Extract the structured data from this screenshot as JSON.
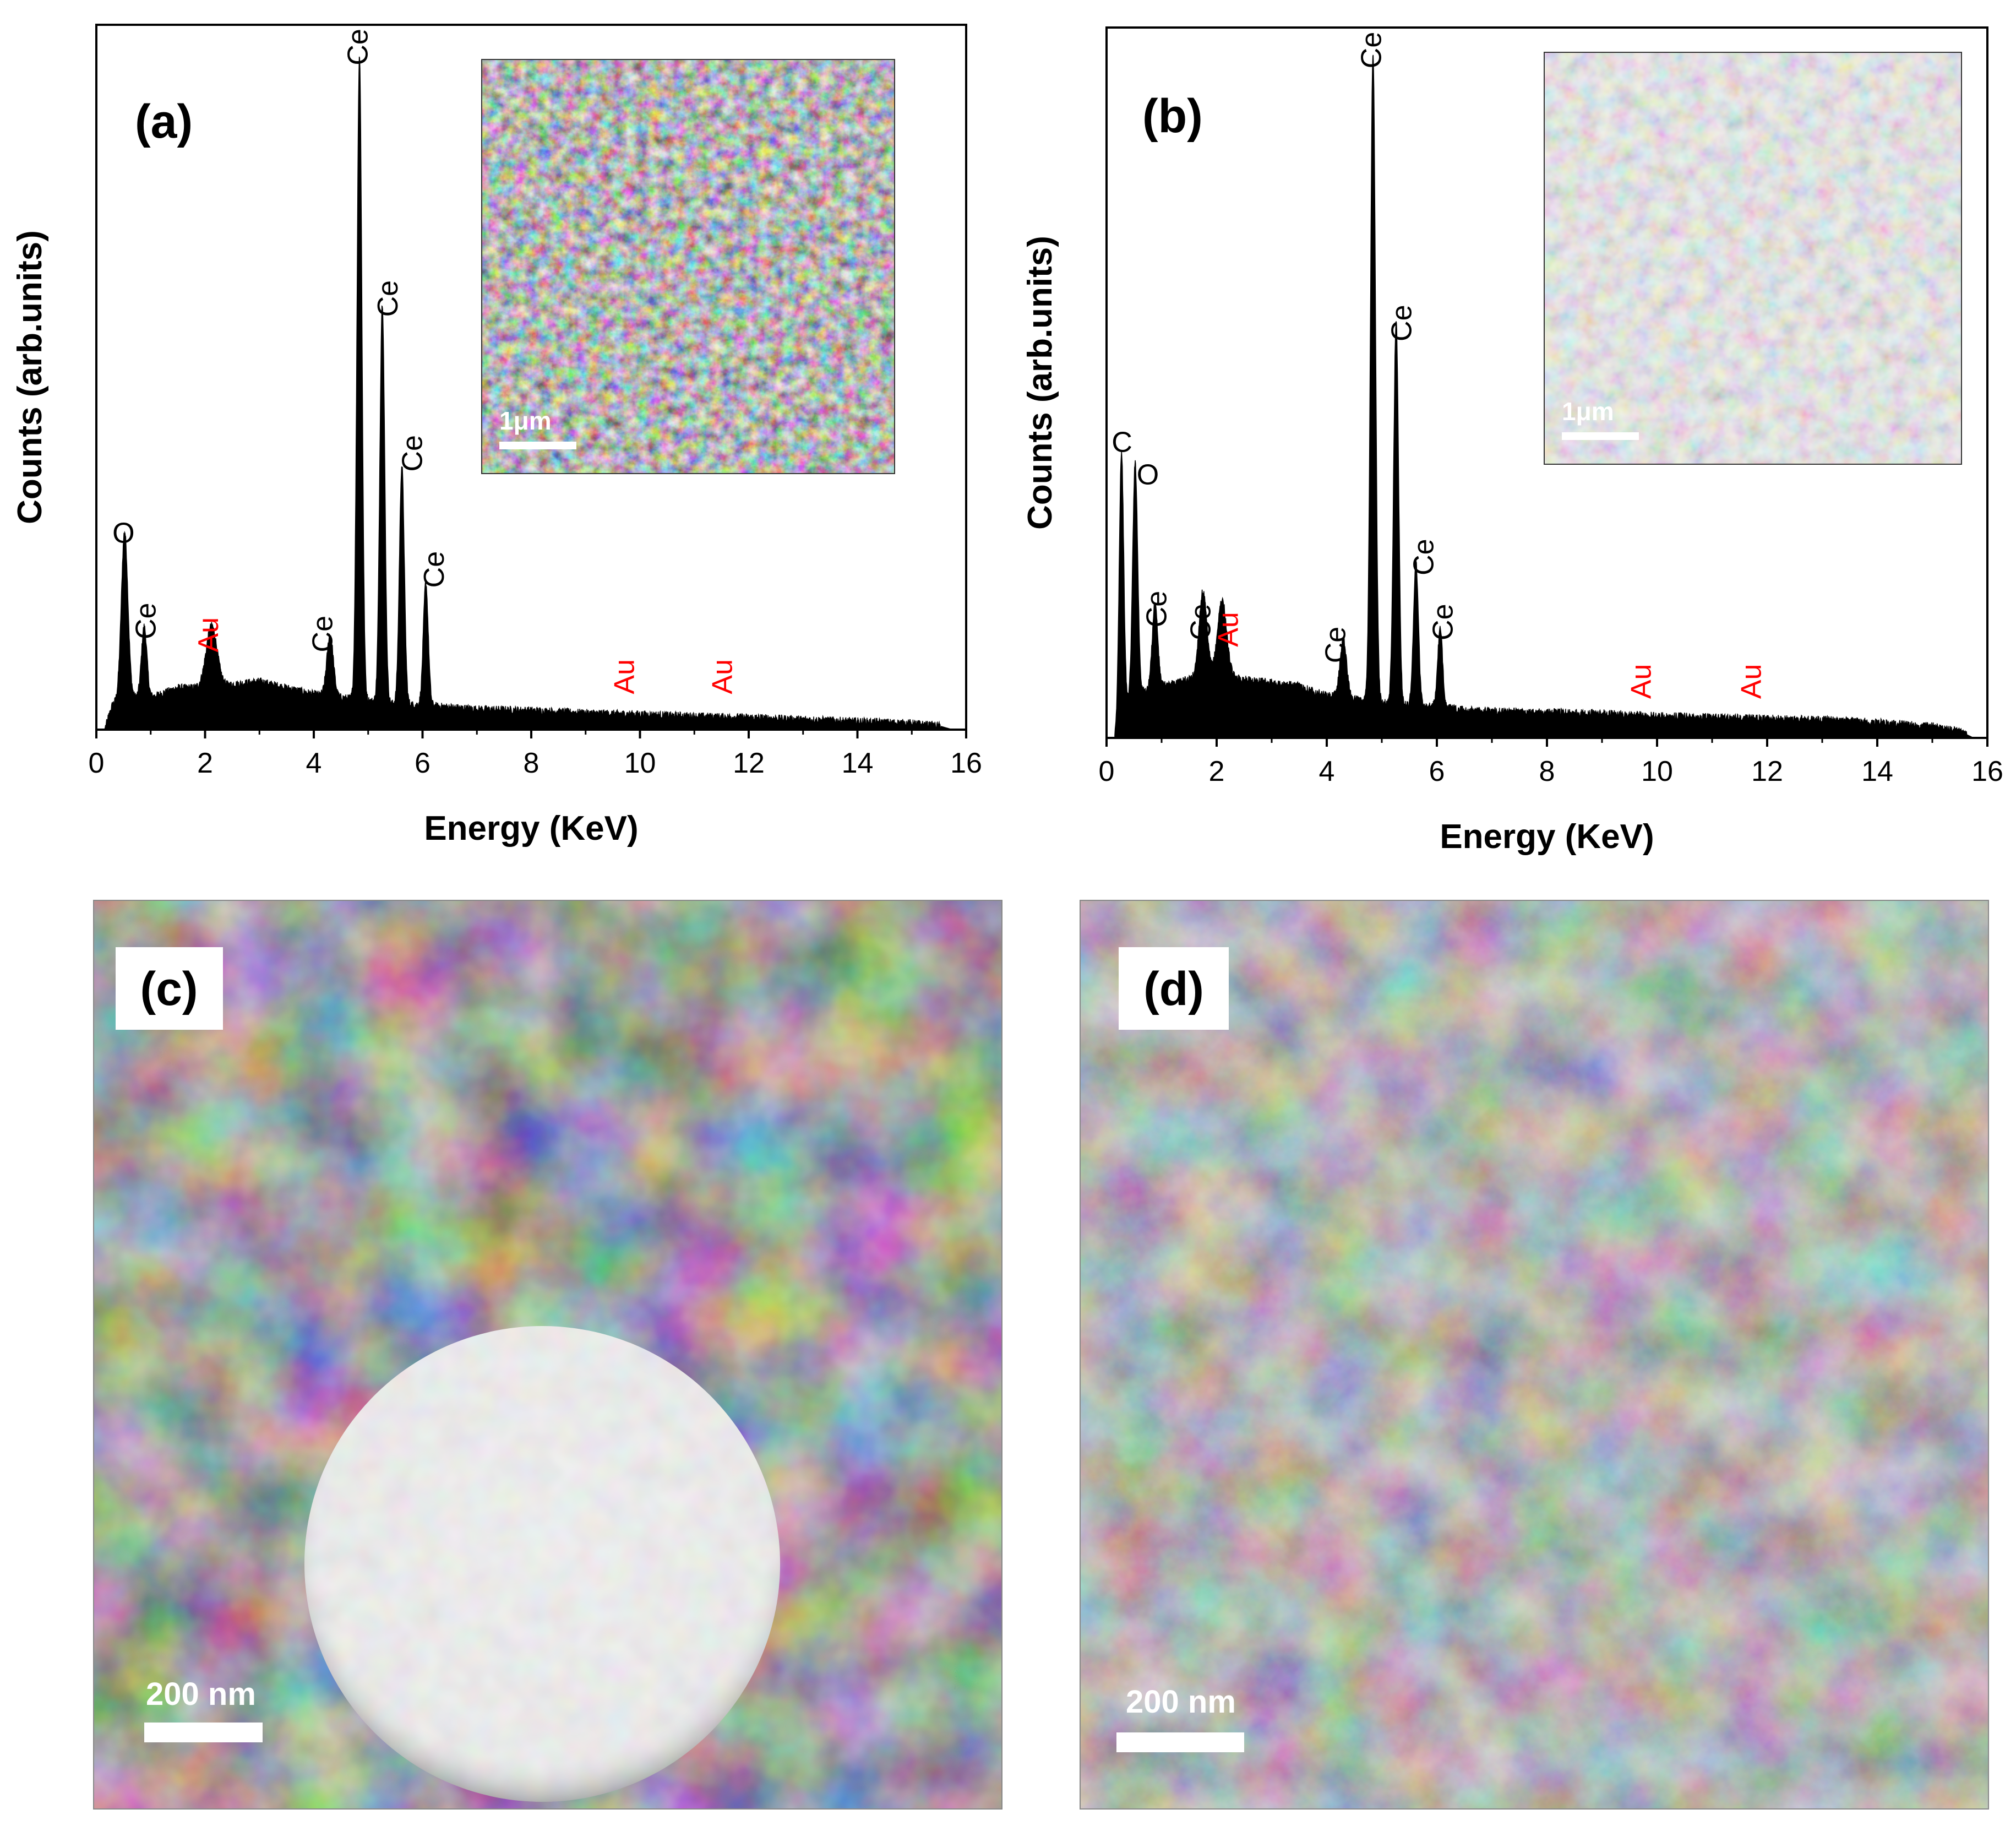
{
  "colors": {
    "spectrum": "#000000",
    "element_label": "#000000",
    "au_label": "#ff0000",
    "scale_bar": "#ffffff"
  },
  "chart_data": [
    {
      "type": "line",
      "panel": "(a)",
      "xlabel": "Energy (KeV)",
      "ylabel": "Counts (arb.units)",
      "xlim": [
        0,
        16
      ],
      "xticks": [
        0,
        2,
        4,
        6,
        8,
        10,
        12,
        14,
        16
      ],
      "ylim": [
        0,
        100
      ],
      "y_ticks_shown": false,
      "fill_under_curve": true,
      "baseline": [
        [
          0.15,
          0
        ],
        [
          0.3,
          4
        ],
        [
          0.6,
          5
        ],
        [
          1.0,
          5
        ],
        [
          1.5,
          6.5
        ],
        [
          2.0,
          6.5
        ],
        [
          2.5,
          7
        ],
        [
          3.0,
          7.5
        ],
        [
          3.5,
          6.5
        ],
        [
          4.0,
          5.5
        ],
        [
          4.5,
          5
        ],
        [
          5.0,
          4.5
        ],
        [
          5.5,
          4
        ],
        [
          6.0,
          3.8
        ],
        [
          6.5,
          3.5
        ],
        [
          7.0,
          3.2
        ],
        [
          8.0,
          3
        ],
        [
          9.0,
          2.6
        ],
        [
          10.0,
          2.4
        ],
        [
          11.0,
          2.1
        ],
        [
          12.0,
          1.9
        ],
        [
          13.0,
          1.6
        ],
        [
          14.0,
          1.3
        ],
        [
          15.0,
          1
        ],
        [
          15.5,
          0.6
        ],
        [
          15.75,
          0
        ]
      ],
      "peaks": [
        {
          "x": 0.52,
          "y": 26,
          "w": 0.06
        },
        {
          "x": 0.88,
          "y": 11,
          "w": 0.05
        },
        {
          "x": 2.12,
          "y": 9.5,
          "w": 0.1
        },
        {
          "x": 4.3,
          "y": 9.5,
          "w": 0.06
        },
        {
          "x": 4.84,
          "y": 100,
          "w": 0.045
        },
        {
          "x": 5.26,
          "y": 62,
          "w": 0.045
        },
        {
          "x": 5.62,
          "y": 37,
          "w": 0.045
        },
        {
          "x": 6.06,
          "y": 19,
          "w": 0.045
        }
      ],
      "annotations": [
        {
          "text": "O",
          "x": 0.5,
          "y": 29,
          "element": "O"
        },
        {
          "text": "Ce",
          "x": 0.95,
          "y": 14,
          "element": "Ce"
        },
        {
          "text": "Au",
          "x": 2.1,
          "y": 12,
          "element": "Au"
        },
        {
          "text": "Ce",
          "x": 4.2,
          "y": 12,
          "element": "Ce"
        },
        {
          "text": "Ce",
          "x": 4.85,
          "y": 103,
          "element": "Ce"
        },
        {
          "text": "Ce",
          "x": 5.4,
          "y": 64,
          "element": "Ce"
        },
        {
          "text": "Ce",
          "x": 5.85,
          "y": 40,
          "element": "Ce"
        },
        {
          "text": "Ce",
          "x": 6.25,
          "y": 22,
          "element": "Ce"
        },
        {
          "text": "Au",
          "x": 9.75,
          "y": 5.5,
          "element": "Au"
        },
        {
          "text": "Au",
          "x": 11.55,
          "y": 5.5,
          "element": "Au"
        }
      ],
      "inset": {
        "type": "sem",
        "scale_label": "1μm",
        "style": "porous"
      }
    },
    {
      "type": "line",
      "panel": "(b)",
      "xlabel": "Energy (KeV)",
      "ylabel": "Counts (arb.units)",
      "xlim": [
        0,
        16
      ],
      "xticks": [
        0,
        2,
        4,
        6,
        8,
        10,
        12,
        14,
        16
      ],
      "ylim": [
        0,
        100
      ],
      "y_ticks_shown": false,
      "fill_under_curve": true,
      "baseline": [
        [
          0.15,
          0
        ],
        [
          0.3,
          5
        ],
        [
          0.6,
          7
        ],
        [
          1.0,
          8
        ],
        [
          1.5,
          9
        ],
        [
          2.0,
          10
        ],
        [
          2.5,
          9
        ],
        [
          3.0,
          8.5
        ],
        [
          3.5,
          8
        ],
        [
          4.0,
          6.5
        ],
        [
          4.5,
          6
        ],
        [
          5.0,
          5.5
        ],
        [
          5.5,
          5
        ],
        [
          6.0,
          4.8
        ],
        [
          6.5,
          4.3
        ],
        [
          7.0,
          4.1
        ],
        [
          8.0,
          4
        ],
        [
          9.0,
          3.8
        ],
        [
          10.0,
          3.4
        ],
        [
          11.0,
          3.2
        ],
        [
          12.0,
          3
        ],
        [
          13.0,
          2.8
        ],
        [
          14.0,
          2.4
        ],
        [
          15.0,
          1.8
        ],
        [
          15.5,
          1
        ],
        [
          15.75,
          0
        ]
      ],
      "peaks": [
        {
          "x": 0.27,
          "y": 40,
          "w": 0.04
        },
        {
          "x": 0.52,
          "y": 36,
          "w": 0.045
        },
        {
          "x": 0.88,
          "y": 13,
          "w": 0.05
        },
        {
          "x": 1.75,
          "y": 13,
          "w": 0.07
        },
        {
          "x": 2.1,
          "y": 11.5,
          "w": 0.08
        },
        {
          "x": 4.3,
          "y": 9,
          "w": 0.06
        },
        {
          "x": 4.84,
          "y": 100,
          "w": 0.045
        },
        {
          "x": 5.26,
          "y": 59,
          "w": 0.045
        },
        {
          "x": 5.62,
          "y": 22,
          "w": 0.045
        },
        {
          "x": 6.06,
          "y": 12,
          "w": 0.045
        }
      ],
      "annotations": [
        {
          "text": "C",
          "x": 0.28,
          "y": 44,
          "element": "C"
        },
        {
          "text": "O",
          "x": 0.75,
          "y": 39,
          "element": "O"
        },
        {
          "text": "Ce",
          "x": 0.95,
          "y": 17,
          "element": "Ce"
        },
        {
          "text": "Ce",
          "x": 1.75,
          "y": 15,
          "element": "Ce"
        },
        {
          "text": "Au",
          "x": 2.25,
          "y": 14,
          "element": "Au"
        },
        {
          "text": "Ce",
          "x": 4.2,
          "y": 11.5,
          "element": "Ce"
        },
        {
          "text": "Ce",
          "x": 4.85,
          "y": 103,
          "element": "Ce"
        },
        {
          "text": "Ce",
          "x": 5.4,
          "y": 61,
          "element": "Ce"
        },
        {
          "text": "Ce",
          "x": 5.8,
          "y": 25,
          "element": "Ce"
        },
        {
          "text": "Ce",
          "x": 6.15,
          "y": 15,
          "element": "Ce"
        },
        {
          "text": "Au",
          "x": 9.75,
          "y": 6,
          "element": "Au"
        },
        {
          "text": "Au",
          "x": 11.75,
          "y": 6,
          "element": "Au"
        }
      ],
      "inset": {
        "type": "sem",
        "scale_label": "1μm",
        "style": "grainy"
      }
    }
  ],
  "micrographs": [
    {
      "panel": "(c)",
      "scale_label": "200 nm",
      "style": "sphere"
    },
    {
      "panel": "(d)",
      "scale_label": "200 nm",
      "style": "aggregate"
    }
  ]
}
